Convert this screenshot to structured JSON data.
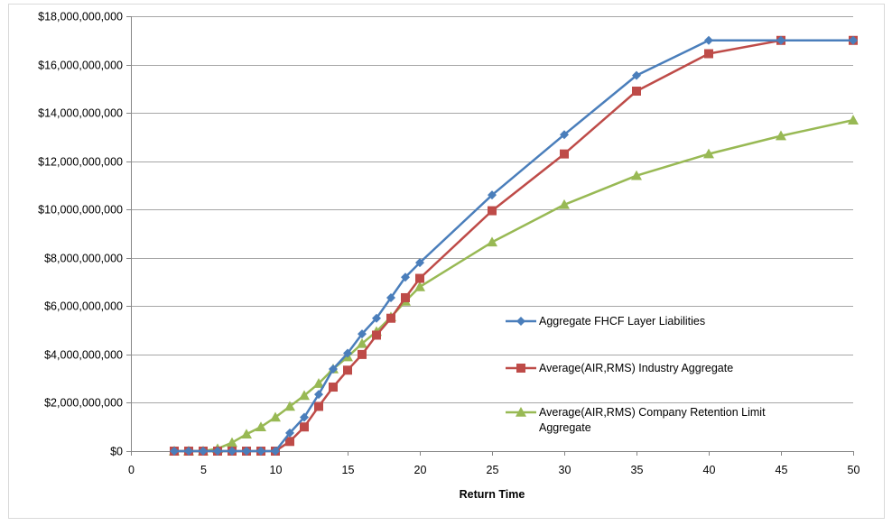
{
  "chart_data": {
    "type": "line",
    "title": "",
    "xlabel": "Return Time",
    "ylabel": "",
    "xlim": [
      0,
      50
    ],
    "ylim": [
      0,
      18000000000
    ],
    "x_ticks": [
      0,
      5,
      10,
      15,
      20,
      25,
      30,
      35,
      40,
      45,
      50
    ],
    "x_tick_labels": [
      "0",
      "5",
      "10",
      "15",
      "20",
      "25",
      "30",
      "35",
      "40",
      "45",
      "50"
    ],
    "y_ticks": [
      0,
      2000000000,
      4000000000,
      6000000000,
      8000000000,
      10000000000,
      12000000000,
      14000000000,
      16000000000,
      18000000000
    ],
    "y_tick_labels": [
      "$0",
      "$2,000,000,000",
      "$4,000,000,000",
      "$6,000,000,000",
      "$8,000,000,000",
      "$10,000,000,000",
      "$12,000,000,000",
      "$14,000,000,000",
      "$16,000,000,000",
      "$18,000,000,000"
    ],
    "grid": "horizontal",
    "legend_position": "center-right",
    "series": [
      {
        "name": "Aggregate FHCF Layer Liabilities",
        "color": "#4a7ebb",
        "marker": "diamond",
        "x": [
          3,
          4,
          5,
          6,
          7,
          8,
          9,
          10,
          11,
          12,
          13,
          14,
          15,
          16,
          17,
          18,
          19,
          20,
          25,
          30,
          35,
          40,
          45,
          50
        ],
        "y": [
          0,
          0,
          0,
          0,
          0,
          0,
          0,
          0,
          750000000,
          1400000000,
          2350000000,
          3400000000,
          4050000000,
          4850000000,
          5500000000,
          6350000000,
          7200000000,
          7800000000,
          10600000000,
          13100000000,
          15550000000,
          17000000000,
          17000000000,
          17000000000
        ]
      },
      {
        "name": "Average(AIR,RMS) Industry Aggregate",
        "color": "#be4b48",
        "marker": "square",
        "x": [
          3,
          4,
          5,
          6,
          7,
          8,
          9,
          10,
          11,
          12,
          13,
          14,
          15,
          16,
          17,
          18,
          19,
          20,
          25,
          30,
          35,
          40,
          45,
          50
        ],
        "y": [
          0,
          0,
          0,
          0,
          0,
          0,
          0,
          0,
          400000000,
          1000000000,
          1850000000,
          2650000000,
          3350000000,
          4000000000,
          4800000000,
          5500000000,
          6350000000,
          7150000000,
          9950000000,
          12300000000,
          14900000000,
          16450000000,
          17000000000,
          17000000000
        ]
      },
      {
        "name": "Average(AIR,RMS) Company Retention Limit Aggregate",
        "color": "#98b954",
        "marker": "triangle",
        "x": [
          3,
          4,
          5,
          6,
          7,
          8,
          9,
          10,
          11,
          12,
          13,
          14,
          15,
          16,
          17,
          18,
          19,
          20,
          25,
          30,
          35,
          40,
          45,
          50
        ],
        "y": [
          0,
          0,
          0,
          100000000,
          350000000,
          700000000,
          1000000000,
          1400000000,
          1850000000,
          2300000000,
          2800000000,
          3400000000,
          3900000000,
          4450000000,
          4950000000,
          5550000000,
          6200000000,
          6800000000,
          8650000000,
          10200000000,
          11400000000,
          12300000000,
          13050000000,
          13700000000
        ]
      }
    ]
  }
}
